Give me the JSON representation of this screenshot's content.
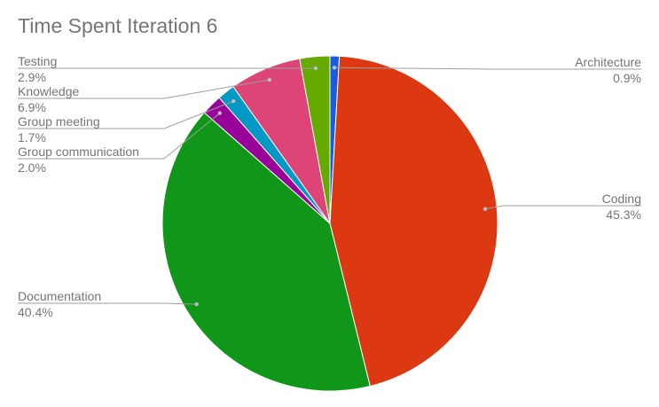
{
  "chart_data": {
    "type": "pie",
    "title": "Time Spent Iteration 6",
    "slices": [
      {
        "label": "Architecture",
        "value": 0.9,
        "display": "0.9%",
        "color": "#1a5ce0"
      },
      {
        "label": "Coding",
        "value": 45.3,
        "display": "45.3%",
        "color": "#dc3912"
      },
      {
        "label": "Documentation",
        "value": 40.4,
        "display": "40.4%",
        "color": "#109618"
      },
      {
        "label": "Group communication",
        "value": 2.0,
        "display": "2.0%",
        "color": "#990099"
      },
      {
        "label": "Group meeting",
        "value": 1.7,
        "display": "1.7%",
        "color": "#0099c6"
      },
      {
        "label": "Knowledge",
        "value": 6.9,
        "display": "6.9%",
        "color": "#dd4477"
      },
      {
        "label": "Testing",
        "value": 2.9,
        "display": "2.9%",
        "color": "#66aa00"
      }
    ],
    "legend": "callout-labels",
    "start_angle_deg": 0,
    "direction": "clockwise"
  }
}
